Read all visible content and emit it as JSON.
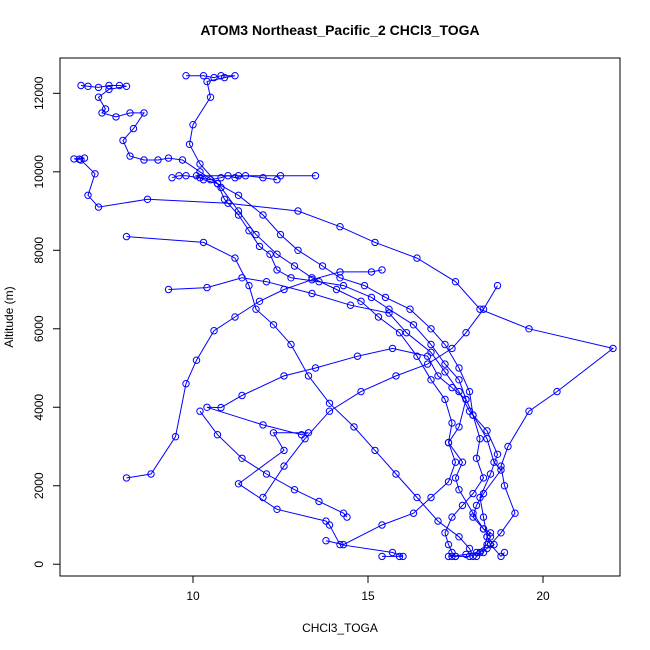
{
  "chart_data": {
    "type": "line",
    "title": "ATOM3 Northeast_Pacific_2 CHCl3_TOGA",
    "xlabel": "CHCl3_TOGA",
    "ylabel": "Altitude (m)",
    "xlim": [
      6.2,
      22.2
    ],
    "ylim": [
      -300,
      12900
    ],
    "xticks": [
      10,
      15,
      20
    ],
    "yticks": [
      0,
      2000,
      4000,
      6000,
      8000,
      10000,
      12000
    ],
    "grid": false,
    "legend": "none",
    "color": "#0000ff",
    "marker": "open-circle",
    "series": [
      {
        "points": [
          [
            15.9,
            200
          ],
          [
            15.4,
            200
          ],
          [
            16.0,
            200
          ],
          [
            15.7,
            300
          ],
          [
            14.2,
            500
          ],
          [
            13.9,
            1000
          ],
          [
            13.8,
            1100
          ],
          [
            12.4,
            1400
          ],
          [
            11.3,
            2050
          ],
          [
            12.6,
            2900
          ],
          [
            12.3,
            3350
          ],
          [
            13.3,
            3350
          ],
          [
            13.1,
            3300
          ],
          [
            12.0,
            3550
          ],
          [
            10.4,
            4000
          ],
          [
            10.8,
            3990
          ],
          [
            11.4,
            4300
          ],
          [
            12.6,
            4800
          ],
          [
            13.5,
            5000
          ],
          [
            14.7,
            5300
          ],
          [
            15.7,
            5500
          ],
          [
            16.7,
            5300
          ],
          [
            17.0,
            4800
          ],
          [
            17.4,
            4500
          ],
          [
            17.8,
            4200
          ],
          [
            18.0,
            3800
          ],
          [
            18.4,
            3200
          ],
          [
            18.6,
            2600
          ],
          [
            18.8,
            2400
          ],
          [
            18.3,
            1800
          ],
          [
            18.1,
            1500
          ],
          [
            18.0,
            1200
          ],
          [
            18.3,
            900
          ],
          [
            18.5,
            800
          ],
          [
            18.4,
            700
          ],
          [
            18.6,
            500
          ],
          [
            18.4,
            400
          ],
          [
            18.2,
            300
          ],
          [
            17.9,
            200
          ],
          [
            17.5,
            200
          ],
          [
            17.3,
            200
          ]
        ]
      },
      {
        "points": [
          [
            17.4,
            200
          ],
          [
            17.8,
            250
          ],
          [
            18.1,
            300
          ],
          [
            18.4,
            500
          ],
          [
            18.5,
            700
          ],
          [
            18.3,
            900
          ],
          [
            18.0,
            1300
          ],
          [
            17.6,
            1900
          ],
          [
            17.5,
            2200
          ],
          [
            17.7,
            2600
          ],
          [
            17.3,
            3100
          ],
          [
            17.6,
            3500
          ],
          [
            17.8,
            4200
          ],
          [
            17.6,
            4700
          ],
          [
            17.2,
            5100
          ],
          [
            16.8,
            5600
          ],
          [
            16.3,
            6100
          ],
          [
            15.6,
            6500
          ],
          [
            15.1,
            6800
          ],
          [
            14.3,
            7100
          ],
          [
            13.6,
            7200
          ],
          [
            12.8,
            7300
          ],
          [
            12.4,
            7500
          ],
          [
            12.2,
            7900
          ],
          [
            11.9,
            8100
          ],
          [
            11.6,
            8500
          ],
          [
            11.3,
            8900
          ],
          [
            10.9,
            9300
          ],
          [
            10.7,
            9700
          ],
          [
            10.3,
            9800
          ],
          [
            10.1,
            9900
          ],
          [
            11.3,
            9900
          ],
          [
            12.5,
            9900
          ],
          [
            13.5,
            9900
          ]
        ]
      },
      {
        "points": [
          [
            9.4,
            9850
          ],
          [
            9.6,
            9900
          ],
          [
            9.8,
            9900
          ],
          [
            10.2,
            9850
          ],
          [
            10.5,
            9800
          ],
          [
            10.8,
            9850
          ],
          [
            11.0,
            9900
          ],
          [
            11.2,
            9850
          ],
          [
            11.5,
            9900
          ],
          [
            12.0,
            9850
          ],
          [
            12.4,
            9800
          ]
        ]
      },
      {
        "points": [
          [
            6.9,
            10350
          ],
          [
            6.6,
            10330
          ],
          [
            6.75,
            10320
          ],
          [
            6.8,
            10300
          ],
          [
            7.2,
            9950
          ],
          [
            7.0,
            9400
          ],
          [
            7.3,
            9100
          ],
          [
            8.7,
            9300
          ],
          [
            11.0,
            9200
          ],
          [
            13.0,
            9000
          ],
          [
            14.2,
            8600
          ],
          [
            15.2,
            8200
          ],
          [
            16.4,
            7800
          ],
          [
            17.5,
            7200
          ],
          [
            18.2,
            6500
          ],
          [
            19.6,
            6000
          ],
          [
            22.0,
            5500
          ],
          [
            20.4,
            4400
          ],
          [
            19.6,
            3900
          ],
          [
            19.0,
            3000
          ],
          [
            18.8,
            2500
          ],
          [
            18.9,
            2000
          ],
          [
            19.2,
            1300
          ],
          [
            18.8,
            800
          ],
          [
            18.5,
            500
          ],
          [
            18.8,
            200
          ],
          [
            18.9,
            300
          ]
        ]
      },
      {
        "points": [
          [
            6.8,
            12200
          ],
          [
            7.0,
            12180
          ],
          [
            7.3,
            12150
          ],
          [
            7.6,
            12200
          ],
          [
            7.9,
            12200
          ],
          [
            8.1,
            12180
          ],
          [
            7.6,
            12100
          ],
          [
            7.3,
            11900
          ],
          [
            7.5,
            11600
          ],
          [
            7.4,
            11500
          ],
          [
            7.8,
            11400
          ],
          [
            8.2,
            11500
          ],
          [
            8.6,
            11500
          ],
          [
            8.3,
            11100
          ],
          [
            8.0,
            10800
          ],
          [
            8.2,
            10400
          ],
          [
            8.6,
            10300
          ],
          [
            9.0,
            10300
          ],
          [
            9.3,
            10350
          ],
          [
            9.7,
            10300
          ],
          [
            10.2,
            10000
          ],
          [
            10.7,
            9700
          ],
          [
            11.3,
            9400
          ],
          [
            12.0,
            8900
          ],
          [
            12.5,
            8400
          ],
          [
            13.0,
            8000
          ],
          [
            13.7,
            7600
          ],
          [
            14.2,
            7300
          ],
          [
            14.9,
            7100
          ],
          [
            15.5,
            6800
          ],
          [
            16.2,
            6500
          ],
          [
            16.8,
            6000
          ],
          [
            17.2,
            5600
          ],
          [
            17.6,
            5000
          ],
          [
            17.9,
            4400
          ],
          [
            18.0,
            3800
          ],
          [
            18.2,
            3200
          ],
          [
            18.1,
            2700
          ],
          [
            18.3,
            2200
          ],
          [
            18.0,
            1800
          ],
          [
            17.7,
            1500
          ],
          [
            17.4,
            1200
          ],
          [
            17.2,
            800
          ],
          [
            17.3,
            500
          ],
          [
            17.4,
            300
          ],
          [
            17.5,
            200
          ]
        ]
      },
      {
        "points": [
          [
            9.8,
            12450
          ],
          [
            10.3,
            12450
          ],
          [
            10.6,
            12400
          ],
          [
            10.8,
            12450
          ],
          [
            11.2,
            12450
          ],
          [
            10.9,
            12400
          ],
          [
            10.4,
            12300
          ],
          [
            10.5,
            11900
          ],
          [
            10.0,
            11200
          ],
          [
            9.9,
            10700
          ],
          [
            10.2,
            10200
          ],
          [
            10.8,
            9600
          ],
          [
            11.3,
            9000
          ],
          [
            11.8,
            8400
          ],
          [
            12.4,
            7900
          ],
          [
            12.9,
            7600
          ],
          [
            13.4,
            7300
          ],
          [
            14.1,
            7000
          ],
          [
            14.8,
            6700
          ],
          [
            15.3,
            6300
          ],
          [
            15.9,
            5900
          ],
          [
            16.4,
            5300
          ],
          [
            16.8,
            4700
          ],
          [
            17.2,
            4200
          ],
          [
            17.4,
            3600
          ],
          [
            17.3,
            3100
          ],
          [
            17.5,
            2600
          ],
          [
            17.3,
            2100
          ],
          [
            16.8,
            1700
          ],
          [
            16.3,
            1300
          ],
          [
            15.4,
            1000
          ],
          [
            14.3,
            500
          ],
          [
            13.8,
            600
          ]
        ]
      },
      {
        "points": [
          [
            8.1,
            2200
          ],
          [
            8.8,
            2300
          ],
          [
            9.5,
            3250
          ],
          [
            9.8,
            4600
          ],
          [
            10.1,
            5200
          ],
          [
            10.6,
            5950
          ],
          [
            11.2,
            6300
          ],
          [
            11.9,
            6700
          ],
          [
            12.6,
            7000
          ],
          [
            13.4,
            7250
          ],
          [
            14.2,
            7450
          ],
          [
            15.1,
            7450
          ],
          [
            15.4,
            7500
          ]
        ]
      },
      {
        "points": [
          [
            8.1,
            8350
          ],
          [
            10.3,
            8200
          ],
          [
            11.2,
            7800
          ],
          [
            11.6,
            7100
          ],
          [
            11.8,
            6500
          ],
          [
            12.3,
            6100
          ],
          [
            12.8,
            5600
          ],
          [
            13.3,
            4800
          ],
          [
            13.9,
            4100
          ],
          [
            14.6,
            3500
          ],
          [
            15.2,
            2900
          ],
          [
            15.8,
            2300
          ],
          [
            16.4,
            1700
          ],
          [
            17.0,
            1100
          ],
          [
            17.6,
            700
          ],
          [
            17.9,
            400
          ],
          [
            18.0,
            200
          ]
        ]
      },
      {
        "points": [
          [
            9.3,
            7000
          ],
          [
            10.4,
            7050
          ],
          [
            11.4,
            7300
          ],
          [
            12.1,
            7200
          ],
          [
            13.4,
            6900
          ],
          [
            14.5,
            6600
          ],
          [
            15.6,
            6400
          ],
          [
            16.1,
            5900
          ],
          [
            16.8,
            5400
          ],
          [
            17.2,
            4900
          ],
          [
            17.6,
            4400
          ],
          [
            17.9,
            3900
          ],
          [
            18.4,
            3400
          ],
          [
            18.7,
            2800
          ],
          [
            18.5,
            2300
          ],
          [
            18.2,
            1700
          ],
          [
            18.3,
            1200
          ],
          [
            18.4,
            700
          ],
          [
            18.3,
            300
          ],
          [
            18.1,
            200
          ]
        ]
      },
      {
        "points": [
          [
            12.0,
            1700
          ],
          [
            12.6,
            2500
          ],
          [
            13.2,
            3200
          ],
          [
            13.9,
            3900
          ],
          [
            14.8,
            4400
          ],
          [
            15.8,
            4800
          ],
          [
            16.7,
            5100
          ],
          [
            17.4,
            5500
          ],
          [
            17.8,
            5900
          ],
          [
            18.3,
            6500
          ],
          [
            18.7,
            7100
          ]
        ]
      },
      {
        "points": [
          [
            10.2,
            3900
          ],
          [
            10.7,
            3300
          ],
          [
            11.4,
            2700
          ],
          [
            12.1,
            2300
          ],
          [
            12.9,
            1900
          ],
          [
            13.6,
            1600
          ],
          [
            14.3,
            1300
          ],
          [
            14.4,
            1200
          ]
        ]
      }
    ]
  }
}
